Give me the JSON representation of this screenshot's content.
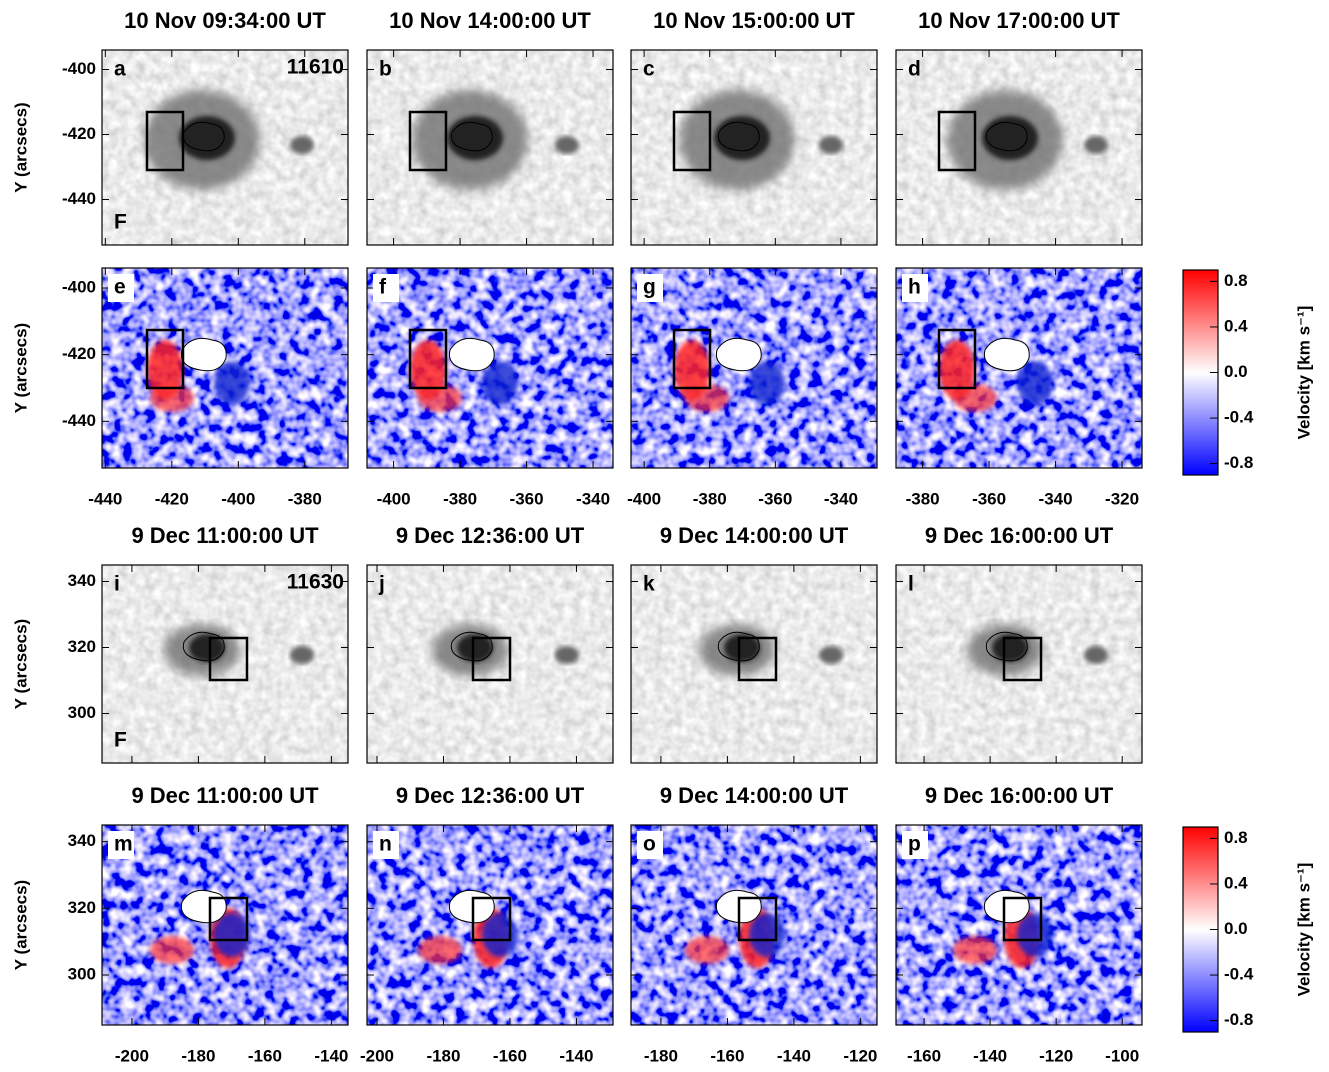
{
  "figure": {
    "y_label": "Y (arcsecs)",
    "colorbar": {
      "label": "Velocity [km s⁻¹]",
      "clim": [
        -0.9,
        0.9
      ],
      "ticks": [
        0.8,
        0.4,
        {
          "value": 0,
          "label": "0.0"
        },
        -0.4,
        -0.8
      ]
    },
    "groups": [
      {
        "region": "11610",
        "ylim": [
          -454,
          -394
        ],
        "yticks": [
          -400,
          -420,
          -440
        ],
        "xaxes": [
          {
            "xlim": [
              -441,
              -367
            ],
            "xticks": [
              -440,
              -420,
              -400,
              -380
            ]
          },
          {
            "xlim": [
              -408,
              -334
            ],
            "xticks": [
              -400,
              -380,
              -360,
              -340
            ]
          },
          {
            "xlim": [
              -404,
              -329
            ],
            "xticks": [
              -400,
              -380,
              -360,
              -340
            ]
          },
          {
            "xlim": [
              -388,
              -314
            ],
            "xticks": [
              -380,
              -360,
              -340,
              -320
            ]
          }
        ],
        "rows": [
          {
            "kind": "intensity",
            "flag": "F",
            "letters": [
              "a",
              "b",
              "c",
              "d"
            ],
            "titles": [
              "10 Nov 09:34:00 UT",
              "10 Nov 14:00:00 UT",
              "10 Nov 15:00:00 UT",
              "10 Nov 17:00:00 UT"
            ]
          },
          {
            "kind": "velocity",
            "letters": [
              "e",
              "f",
              "g",
              "h"
            ]
          }
        ]
      },
      {
        "region": "11630",
        "ylim": [
          285,
          345
        ],
        "yticks": [
          340,
          320,
          300
        ],
        "xaxes": [
          {
            "xlim": [
              -209,
              -135
            ],
            "xticks": [
              -200,
              -180,
              -160,
              -140
            ]
          },
          {
            "xlim": [
              -203,
              -129
            ],
            "xticks": [
              -200,
              -180,
              -160,
              -140
            ]
          },
          {
            "xlim": [
              -189,
              -115
            ],
            "xticks": [
              -180,
              -160,
              -140,
              -120
            ]
          },
          {
            "xlim": [
              -168.5,
              -94
            ],
            "xticks": [
              -160,
              -140,
              -120,
              -100
            ]
          }
        ],
        "rows": [
          {
            "kind": "intensity",
            "flag": "F",
            "letters": [
              "i",
              "j",
              "k",
              "l"
            ],
            "titles": [
              "9 Dec 11:00:00 UT",
              "9 Dec 12:36:00 UT",
              "9 Dec 14:00:00 UT",
              "9 Dec 16:00:00 UT"
            ]
          },
          {
            "kind": "velocity",
            "letters": [
              "m",
              "n",
              "o",
              "p"
            ],
            "titles": [
              "9 Dec 11:00:00 UT",
              "9 Dec 12:36:00 UT",
              "9 Dec 14:00:00 UT",
              "9 Dec 16:00:00 UT"
            ]
          }
        ]
      }
    ]
  }
}
